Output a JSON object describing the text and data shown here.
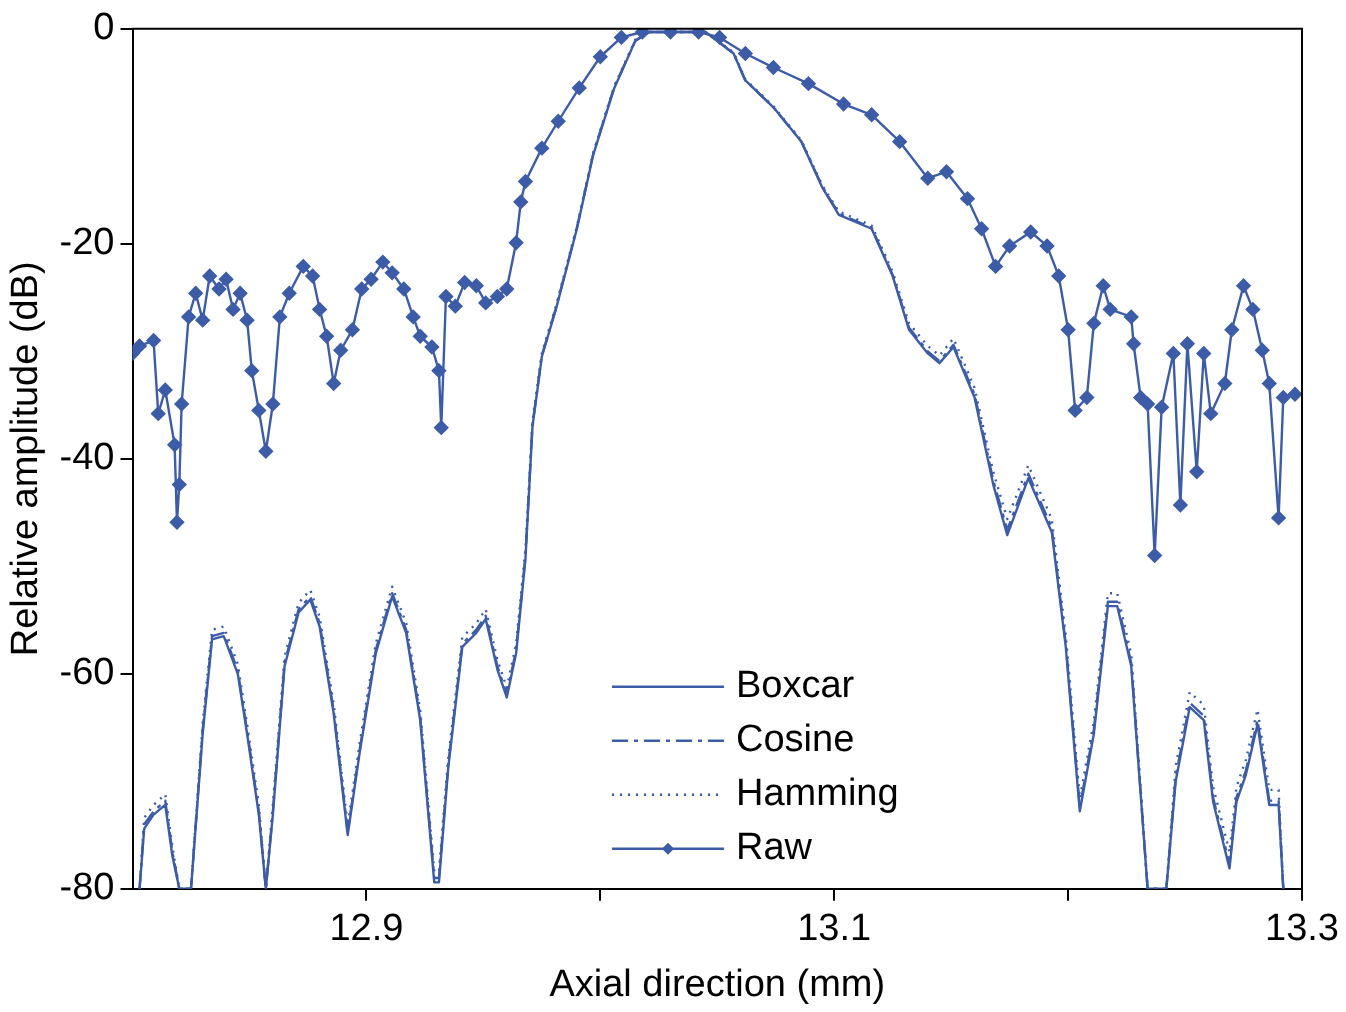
{
  "chart_data": {
    "type": "line",
    "xlabel": "Axial direction (mm)",
    "ylabel": "Relative amplitude (dB)",
    "xlim": [
      12.8,
      13.3
    ],
    "xticks": [
      12.9,
      {
        "value": 13.0,
        "label": null
      },
      13.1,
      {
        "value": 13.2,
        "label": null
      },
      13.3
    ],
    "ylim": [
      -80,
      0
    ],
    "yticks": [
      -80,
      -60,
      -40,
      -20,
      0
    ],
    "grid": false,
    "legend": "bottom",
    "series": [
      {
        "name": "Boxcar",
        "color": "#3d5ca8",
        "line_style": "solid",
        "marker": "none",
        "x": [
          12.803,
          12.805,
          12.809,
          12.814,
          12.817,
          12.82,
          12.825,
          12.83,
          12.834,
          12.839,
          12.845,
          12.849,
          12.854,
          12.857,
          12.86,
          12.865,
          12.871,
          12.876,
          12.88,
          12.886,
          12.892,
          12.897,
          12.904,
          12.911,
          12.917,
          12.923,
          12.929,
          12.931,
          12.935,
          12.941,
          12.947,
          12.951,
          12.956,
          12.96,
          12.964,
          12.968,
          12.971,
          12.975,
          12.981,
          12.99,
          12.997,
          13.006,
          13.015,
          13.021,
          13.045,
          13.057,
          13.062,
          13.074,
          13.086,
          13.095,
          13.102,
          13.116,
          13.125,
          13.132,
          13.14,
          13.145,
          13.151,
          13.16,
          13.168,
          13.174,
          13.183,
          13.193,
          13.199,
          13.205,
          13.211,
          13.217,
          13.221,
          13.227,
          13.234,
          13.242,
          13.246,
          13.252,
          13.258,
          13.262,
          13.269,
          13.272,
          13.276,
          13.281,
          13.286,
          13.29,
          13.292
        ],
        "values": [
          -80,
          -74.4,
          -73.1,
          -72.2,
          -76.9,
          -80,
          -80,
          -65.6,
          -56.8,
          -56.5,
          -60,
          -65.6,
          -73.1,
          -80,
          -73.1,
          -59.3,
          -54.3,
          -53.1,
          -55.6,
          -63.7,
          -75,
          -67.5,
          -58.1,
          -52.8,
          -56.2,
          -64.3,
          -79.4,
          -79.4,
          -68.7,
          -57.5,
          -56.2,
          -54.9,
          -59.6,
          -62.2,
          -58.1,
          -49.3,
          -37,
          -30.5,
          -26.1,
          -18.6,
          -11.7,
          -5.5,
          -1.1,
          -0.3,
          -0.3,
          -2.3,
          -4.8,
          -7.3,
          -10.5,
          -14.8,
          -17.3,
          -18.6,
          -23,
          -28,
          -30.2,
          -31.1,
          -29.6,
          -34.3,
          -42.4,
          -47.1,
          -41.8,
          -46.8,
          -57.5,
          -72.8,
          -65.6,
          -53.7,
          -53.7,
          -59.3,
          -80,
          -80,
          -70,
          -63.1,
          -64.3,
          -71.9,
          -78.1,
          -71.9,
          -69.4,
          -64.7,
          -72.2,
          -72.2,
          -80
        ]
      },
      {
        "name": "Cosine",
        "color": "#3d5ca8",
        "line_style": "dashed",
        "marker": "none",
        "x": [
          12.803,
          12.805,
          12.809,
          12.814,
          12.817,
          12.82,
          12.825,
          12.83,
          12.834,
          12.839,
          12.845,
          12.849,
          12.854,
          12.857,
          12.86,
          12.865,
          12.871,
          12.876,
          12.88,
          12.886,
          12.892,
          12.897,
          12.904,
          12.911,
          12.917,
          12.923,
          12.929,
          12.931,
          12.935,
          12.941,
          12.947,
          12.951,
          12.956,
          12.96,
          12.964,
          12.968,
          12.971,
          12.975,
          12.981,
          12.99,
          12.997,
          13.006,
          13.015,
          13.021,
          13.045,
          13.057,
          13.062,
          13.074,
          13.086,
          13.095,
          13.102,
          13.116,
          13.125,
          13.132,
          13.14,
          13.145,
          13.151,
          13.16,
          13.168,
          13.174,
          13.183,
          13.193,
          13.199,
          13.205,
          13.211,
          13.217,
          13.221,
          13.227,
          13.234,
          13.242,
          13.246,
          13.252,
          13.258,
          13.262,
          13.269,
          13.272,
          13.276,
          13.281,
          13.286,
          13.29,
          13.292
        ],
        "values": [
          -80,
          -74,
          -72.8,
          -71.8,
          -76.5,
          -80,
          -80,
          -65.2,
          -56.5,
          -56.2,
          -59.7,
          -65.3,
          -72.8,
          -80,
          -72.8,
          -59,
          -54,
          -52.8,
          -55.3,
          -63.4,
          -74.7,
          -67.2,
          -57.8,
          -52.5,
          -55.9,
          -64,
          -79,
          -79,
          -68.4,
          -57.2,
          -55.9,
          -54.6,
          -59.3,
          -61.9,
          -57.8,
          -49,
          -36.8,
          -30.4,
          -26,
          -18.5,
          -11.6,
          -5.4,
          -1.1,
          -0.3,
          -0.3,
          -2.3,
          -4.8,
          -7.3,
          -10.5,
          -14.7,
          -17.2,
          -18.5,
          -22.9,
          -27.8,
          -30,
          -30.9,
          -29.4,
          -34,
          -42,
          -46.6,
          -41.4,
          -46.4,
          -57.2,
          -72.4,
          -65.2,
          -53.3,
          -53.3,
          -59,
          -80,
          -80,
          -69.6,
          -62.7,
          -63.9,
          -71.5,
          -77.7,
          -71.5,
          -69,
          -64.3,
          -71.8,
          -71.8,
          -80
        ]
      },
      {
        "name": "Hamming",
        "color": "#3d5ca8",
        "line_style": "dotted",
        "marker": "none",
        "x": [
          12.803,
          12.805,
          12.809,
          12.814,
          12.817,
          12.82,
          12.825,
          12.83,
          12.834,
          12.839,
          12.845,
          12.849,
          12.854,
          12.857,
          12.86,
          12.865,
          12.871,
          12.876,
          12.88,
          12.886,
          12.892,
          12.897,
          12.904,
          12.911,
          12.917,
          12.923,
          12.929,
          12.931,
          12.935,
          12.941,
          12.947,
          12.951,
          12.956,
          12.96,
          12.964,
          12.968,
          12.971,
          12.975,
          12.981,
          12.99,
          12.997,
          13.006,
          13.015,
          13.021,
          13.045,
          13.057,
          13.062,
          13.074,
          13.086,
          13.095,
          13.102,
          13.116,
          13.125,
          13.132,
          13.14,
          13.145,
          13.151,
          13.16,
          13.168,
          13.174,
          13.183,
          13.193,
          13.199,
          13.205,
          13.211,
          13.217,
          13.221,
          13.227,
          13.234,
          13.242,
          13.246,
          13.252,
          13.258,
          13.262,
          13.269,
          13.272,
          13.276,
          13.281,
          13.286,
          13.29,
          13.292
        ],
        "values": [
          -80,
          -73.4,
          -72.2,
          -71.2,
          -76,
          -80,
          -80,
          -64.6,
          -55.9,
          -55.6,
          -59.1,
          -64.7,
          -72.2,
          -80,
          -72.2,
          -58.4,
          -53.4,
          -52.2,
          -54.7,
          -62.8,
          -74.1,
          -66.6,
          -57.2,
          -51.9,
          -55.3,
          -63.4,
          -78.4,
          -78.4,
          -67.8,
          -56.6,
          -55.3,
          -54,
          -58.7,
          -61.3,
          -57.2,
          -48.4,
          -36.5,
          -30.2,
          -25.8,
          -18.4,
          -11.5,
          -5.3,
          -1,
          -0.3,
          -0.3,
          -2.2,
          -4.7,
          -7.2,
          -10.4,
          -14.6,
          -17,
          -18.3,
          -22.6,
          -27.4,
          -29.5,
          -30.4,
          -28.8,
          -33.4,
          -41.2,
          -45.6,
          -40.6,
          -45.6,
          -56.4,
          -71.6,
          -64.4,
          -52.5,
          -52.5,
          -58.2,
          -80,
          -80,
          -68.6,
          -61.7,
          -62.9,
          -70.5,
          -76.6,
          -70.5,
          -68,
          -63.3,
          -70.8,
          -70.8,
          -80
        ]
      },
      {
        "name": "Raw",
        "color": "#3d5ca8",
        "line_style": "solid",
        "marker": "diamond",
        "x": [
          12.8,
          12.803,
          12.809,
          12.811,
          12.814,
          12.818,
          12.819,
          12.82,
          12.821,
          12.824,
          12.827,
          12.83,
          12.833,
          12.837,
          12.84,
          12.843,
          12.846,
          12.849,
          12.851,
          12.854,
          12.857,
          12.86,
          12.863,
          12.867,
          12.873,
          12.877,
          12.88,
          12.883,
          12.886,
          12.889,
          12.894,
          12.898,
          12.902,
          12.907,
          12.911,
          12.916,
          12.92,
          12.923,
          12.928,
          12.931,
          12.932,
          12.934,
          12.938,
          12.942,
          12.947,
          12.951,
          12.956,
          12.96,
          12.964,
          12.966,
          12.968,
          12.975,
          12.982,
          12.991,
          13.0,
          13.009,
          13.018,
          13.03,
          13.042,
          13.051,
          13.062,
          13.074,
          13.089,
          13.104,
          13.116,
          13.128,
          13.14,
          13.148,
          13.157,
          13.163,
          13.169,
          13.175,
          13.184,
          13.191,
          13.196,
          13.2,
          13.203,
          13.208,
          13.211,
          13.215,
          13.218,
          13.227,
          13.228,
          13.231,
          13.234,
          13.237,
          13.24,
          13.245,
          13.248,
          13.251,
          13.255,
          13.258,
          13.261,
          13.267,
          13.27,
          13.275,
          13.279,
          13.283,
          13.286,
          13.29,
          13.292,
          13.297
        ],
        "values": [
          -30.2,
          -29.5,
          -29,
          -35.8,
          -33.6,
          -38.7,
          -45.9,
          -42.4,
          -34.9,
          -26.8,
          -24.6,
          -27.1,
          -23,
          -24.2,
          -23.3,
          -26.1,
          -24.6,
          -27.1,
          -31.8,
          -35.5,
          -39.3,
          -34.9,
          -26.8,
          -24.6,
          -22.1,
          -23,
          -26.1,
          -28.6,
          -33,
          -29.9,
          -28,
          -24.2,
          -23.3,
          -21.7,
          -22.7,
          -24.2,
          -26.8,
          -28.6,
          -29.6,
          -31.8,
          -37.1,
          -24.9,
          -25.8,
          -23.6,
          -23.9,
          -25.5,
          -24.9,
          -24.2,
          -19.9,
          -16.1,
          -14.2,
          -11.1,
          -8.6,
          -5.5,
          -2.6,
          -0.8,
          -0.3,
          -0.3,
          -0.3,
          -0.8,
          -2.3,
          -3.6,
          -5.1,
          -7,
          -8,
          -10.5,
          -13.9,
          -13.3,
          -15.8,
          -18.6,
          -22.1,
          -20.2,
          -18.9,
          -20.2,
          -23,
          -28,
          -35.5,
          -34.3,
          -27.4,
          -23.9,
          -26.1,
          -26.8,
          -29.3,
          -34.3,
          -34.9,
          -49,
          -35.2,
          -30.2,
          -44.3,
          -29.3,
          -41.2,
          -30.2,
          -35.8,
          -33,
          -28,
          -23.9,
          -26.1,
          -29.9,
          -33,
          -45.5,
          -34.3,
          -34
        ]
      }
    ]
  }
}
